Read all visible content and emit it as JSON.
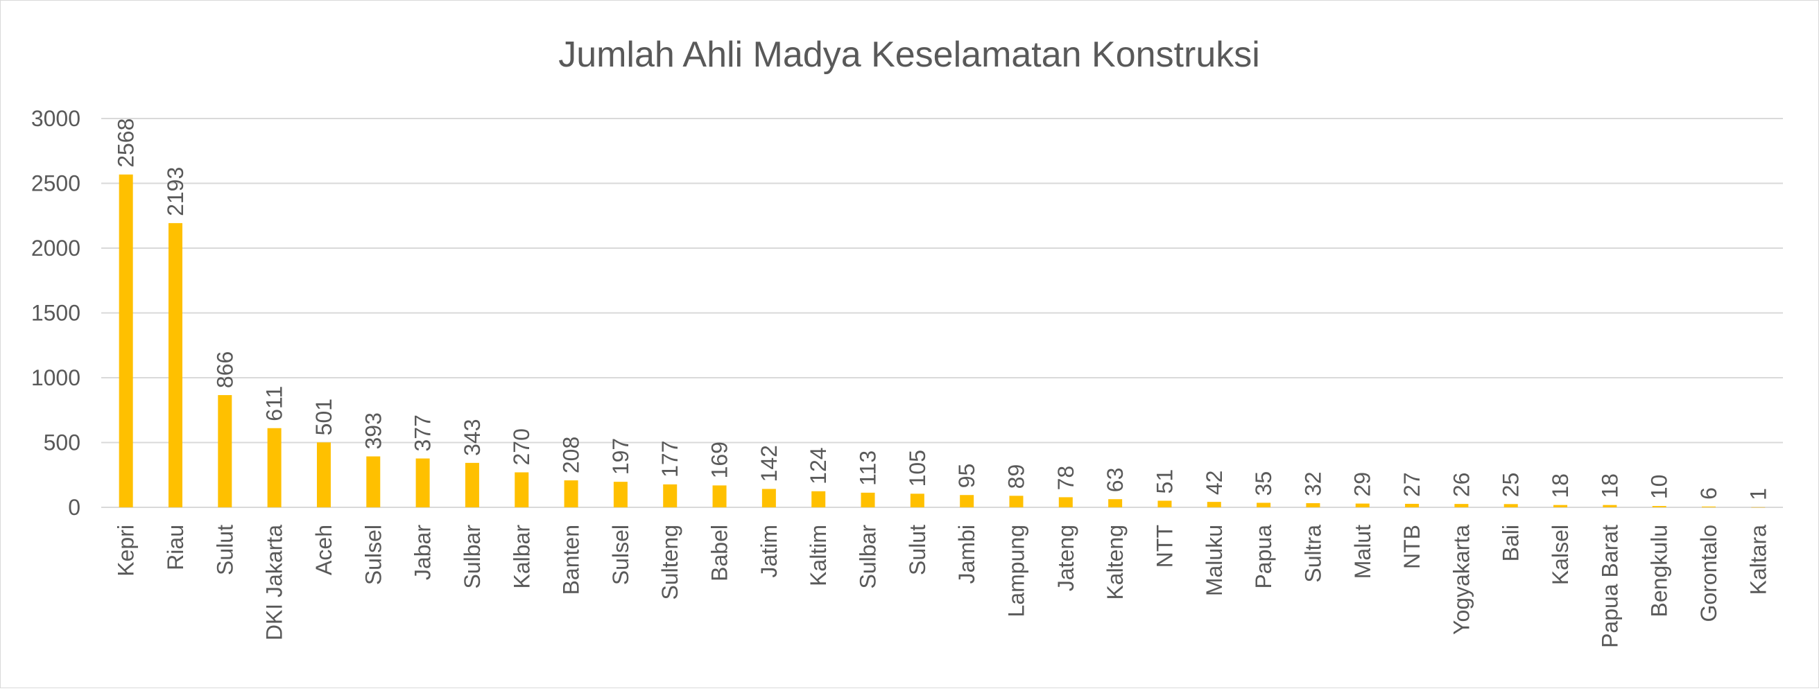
{
  "chart_data": {
    "type": "bar",
    "title": "Jumlah Ahli Madya Keselamatan Konstruksi",
    "xlabel": "",
    "ylabel": "",
    "ylim": [
      0,
      3000
    ],
    "yticks": [
      0,
      500,
      1000,
      1500,
      2000,
      2500,
      3000
    ],
    "grid": true,
    "legend": "none",
    "bar_color": "#FFC000",
    "categories": [
      "Kepri",
      "Riau",
      "Sulut",
      "DKI Jakarta",
      "Aceh",
      "Sulsel",
      "Jabar",
      "Sulbar",
      "Kalbar",
      "Banten",
      "Sulsel",
      "Sulteng",
      "Babel",
      "Jatim",
      "Kaltim",
      "Sulbar",
      "Sulut",
      "Jambi",
      "Lampung",
      "Jateng",
      "Kalteng",
      "NTT",
      "Maluku",
      "Papua",
      "Sultra",
      "Malut",
      "NTB",
      "Yogyakarta",
      "Bali",
      "Kalsel",
      "Papua Barat",
      "Bengkulu",
      "Gorontalo",
      "Kaltara"
    ],
    "values": [
      2568,
      2193,
      866,
      611,
      501,
      393,
      377,
      343,
      270,
      208,
      197,
      177,
      169,
      142,
      124,
      113,
      105,
      95,
      89,
      78,
      63,
      51,
      42,
      35,
      32,
      29,
      27,
      26,
      25,
      18,
      18,
      10,
      6,
      1
    ]
  }
}
